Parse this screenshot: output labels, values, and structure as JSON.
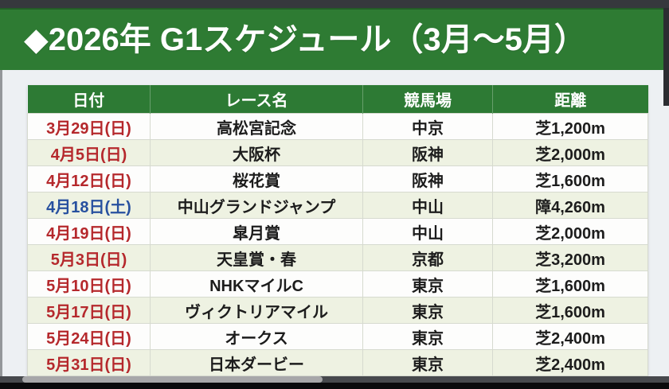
{
  "banner": {
    "title": "◆2026年 G1スケジュール（3月〜5月）"
  },
  "table": {
    "headers": [
      "日付",
      "レース名",
      "競馬場",
      "距離"
    ],
    "rows": [
      {
        "date": "3月29日(日)",
        "race": "高松宮記念",
        "course": "中京",
        "distance": "芝1,200m",
        "date_color": "red"
      },
      {
        "date": "4月5日(日)",
        "race": "大阪杯",
        "course": "阪神",
        "distance": "芝2,000m",
        "date_color": "red"
      },
      {
        "date": "4月12日(日)",
        "race": "桜花賞",
        "course": "阪神",
        "distance": "芝1,600m",
        "date_color": "red"
      },
      {
        "date": "4月18日(土)",
        "race": "中山グランドジャンプ",
        "course": "中山",
        "distance": "障4,260m",
        "date_color": "blue"
      },
      {
        "date": "4月19日(日)",
        "race": "皐月賞",
        "course": "中山",
        "distance": "芝2,000m",
        "date_color": "red"
      },
      {
        "date": "5月3日(日)",
        "race": "天皇賞・春",
        "course": "京都",
        "distance": "芝3,200m",
        "date_color": "red"
      },
      {
        "date": "5月10日(日)",
        "race": "NHKマイルC",
        "course": "東京",
        "distance": "芝1,600m",
        "date_color": "red"
      },
      {
        "date": "5月17日(日)",
        "race": "ヴィクトリアマイル",
        "course": "東京",
        "distance": "芝1,600m",
        "date_color": "red"
      },
      {
        "date": "5月24日(日)",
        "race": "オークス",
        "course": "東京",
        "distance": "芝2,400m",
        "date_color": "red"
      },
      {
        "date": "5月31日(日)",
        "race": "日本ダービー",
        "course": "東京",
        "distance": "芝2,400m",
        "date_color": "red"
      }
    ]
  },
  "colors": {
    "banner_green": "#2e7b33",
    "header_green": "#2d7a34",
    "row_white": "#fdfdfc",
    "row_green": "#eef2e2",
    "date_red": "#b5282c",
    "date_blue": "#27509f",
    "page_bg": "#edf0f3"
  },
  "chart_data": {
    "type": "table",
    "title": "◆2026年 G1スケジュール（3月〜5月）",
    "columns": [
      "日付",
      "レース名",
      "競馬場",
      "距離"
    ],
    "rows": [
      [
        "3月29日(日)",
        "高松宮記念",
        "中京",
        "芝1,200m"
      ],
      [
        "4月5日(日)",
        "大阪杯",
        "阪神",
        "芝2,000m"
      ],
      [
        "4月12日(日)",
        "桜花賞",
        "阪神",
        "芝1,600m"
      ],
      [
        "4月18日(土)",
        "中山グランドジャンプ",
        "中山",
        "障4,260m"
      ],
      [
        "4月19日(日)",
        "皐月賞",
        "中山",
        "芝2,000m"
      ],
      [
        "5月3日(日)",
        "天皇賞・春",
        "京都",
        "芝3,200m"
      ],
      [
        "5月10日(日)",
        "NHKマイルC",
        "東京",
        "芝1,600m"
      ],
      [
        "5月17日(日)",
        "ヴィクトリアマイル",
        "東京",
        "芝1,600m"
      ],
      [
        "5月24日(日)",
        "オークス",
        "東京",
        "芝2,400m"
      ],
      [
        "5月31日(日)",
        "日本ダービー",
        "東京",
        "芝2,400m"
      ]
    ],
    "notes": {
      "date_text_colors": "Sundays (日) shown in red #b5282c, Saturday (土) shown in blue #27509f",
      "row_striping": "alternating white / pale green starting with white"
    }
  }
}
